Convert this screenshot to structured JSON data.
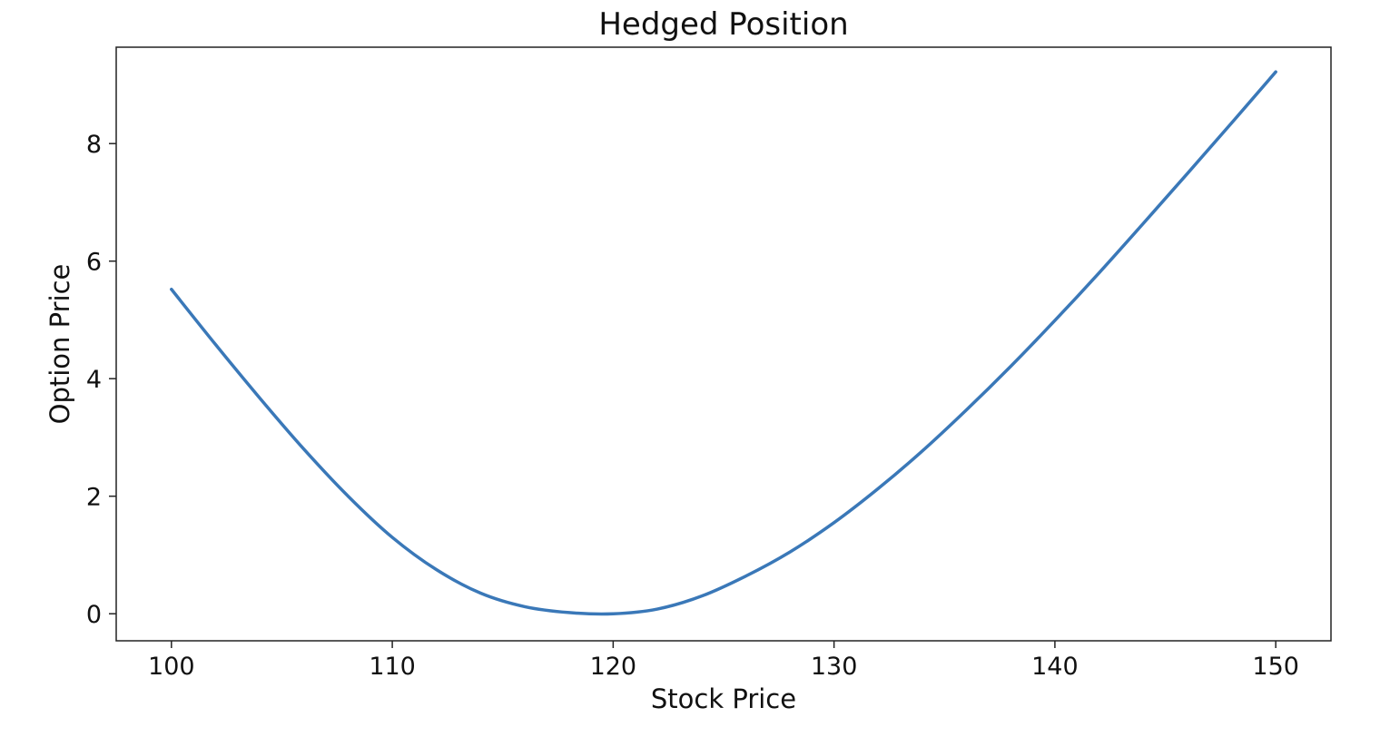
{
  "chart_data": {
    "type": "line",
    "title": "Hedged Position",
    "xlabel": "Stock Price",
    "ylabel": "Option Price",
    "xlim": [
      97.5,
      152.5
    ],
    "ylim": [
      -0.46,
      9.64
    ],
    "xticks": [
      100,
      110,
      120,
      130,
      140,
      150
    ],
    "yticks": [
      0,
      2,
      4,
      6,
      8
    ],
    "grid": false,
    "legend": "none",
    "series": [
      {
        "color": "#3a78b8",
        "x": [
          100,
          102,
          104,
          106,
          108,
          110,
          112,
          114,
          116,
          118,
          120,
          122,
          124,
          126,
          128,
          130,
          132,
          134,
          136,
          138,
          140,
          142,
          144,
          146,
          148,
          150
        ],
        "y": [
          5.52,
          4.58,
          3.67,
          2.8,
          2.0,
          1.3,
          0.75,
          0.35,
          0.12,
          0.02,
          0.0,
          0.08,
          0.3,
          0.64,
          1.05,
          1.55,
          2.13,
          2.77,
          3.47,
          4.21,
          4.99,
          5.8,
          6.64,
          7.49,
          8.35,
          9.22
        ]
      }
    ]
  }
}
